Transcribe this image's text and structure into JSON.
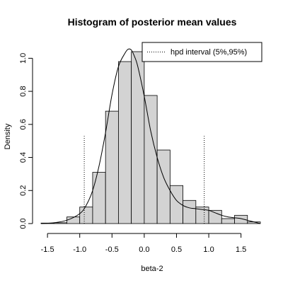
{
  "chart_data": {
    "type": "histogram",
    "title": "Histogram of posterior mean values",
    "xlabel": "beta-2",
    "ylabel": "Density",
    "xlim": [
      -1.6,
      1.8
    ],
    "ylim": [
      0,
      1.1
    ],
    "x_ticks": [
      -1.5,
      -1.0,
      -0.5,
      0.0,
      0.5,
      1.0,
      1.5
    ],
    "x_tick_labels": [
      "-1.5",
      "-1.0",
      "-0.5",
      "0.0",
      "0.5",
      "1.0",
      "1.5"
    ],
    "y_ticks": [
      0.0,
      0.2,
      0.4,
      0.6,
      0.8,
      1.0
    ],
    "y_tick_labels": [
      "0.0",
      "0.2",
      "0.4",
      "0.6",
      "0.8",
      "1.0"
    ],
    "bin_edges": [
      -1.6,
      -1.5,
      -1.4,
      -1.3,
      -1.2,
      -1.1,
      -1.0,
      -0.9,
      -0.8,
      -0.7,
      -0.6,
      -0.5,
      -0.4,
      -0.3,
      -0.2,
      -0.1,
      0.0,
      0.1,
      0.2,
      0.3,
      0.4,
      0.5,
      0.6,
      0.7,
      0.8,
      0.9,
      1.0,
      1.1,
      1.2,
      1.3,
      1.4,
      1.5,
      1.6,
      1.7,
      1.8
    ],
    "densities": [
      0.003,
      0.003,
      0.003,
      0.005,
      0.015,
      0.04,
      0.06,
      0.1,
      0.31,
      0.31,
      0.68,
      0.98,
      0.98,
      1.04,
      0.99,
      0.78,
      0.45,
      0.45,
      0.23,
      0.23,
      0.14,
      0.14,
      0.1,
      0.09,
      0.08,
      0.03,
      0.05,
      0.01,
      0.01,
      0.0,
      0.0,
      0.0,
      0.0,
      0.0
    ],
    "bins": [
      {
        "from": -1.6,
        "to": -1.4,
        "density": 0.003
      },
      {
        "from": -1.4,
        "to": -1.2,
        "density": 0.005
      },
      {
        "from": -1.2,
        "to": -1.0,
        "density": 0.04
      },
      {
        "from": -1.0,
        "to": -0.8,
        "density": 0.1
      },
      {
        "from": -0.8,
        "to": -0.6,
        "density": 0.31
      },
      {
        "from": -0.6,
        "to": -0.4,
        "density": 0.68
      },
      {
        "from": -0.4,
        "to": -0.2,
        "density": 0.98
      },
      {
        "from": -0.2,
        "to": 0.0,
        "density": 1.04
      },
      {
        "from": 0.0,
        "to": 0.2,
        "density": 0.775
      },
      {
        "from": 0.2,
        "to": 0.4,
        "density": 0.445
      },
      {
        "from": 0.4,
        "to": 0.6,
        "density": 0.23
      },
      {
        "from": 0.6,
        "to": 0.8,
        "density": 0.14
      },
      {
        "from": 0.8,
        "to": 1.0,
        "density": 0.1
      },
      {
        "from": 1.0,
        "to": 1.2,
        "density": 0.08
      },
      {
        "from": 1.2,
        "to": 1.4,
        "density": 0.03
      },
      {
        "from": 1.4,
        "to": 1.6,
        "density": 0.05
      },
      {
        "from": 1.6,
        "to": 1.8,
        "density": 0.01
      }
    ],
    "density_curve": {
      "x": [
        -1.6,
        -1.4,
        -1.2,
        -1.0,
        -0.9,
        -0.8,
        -0.7,
        -0.6,
        -0.5,
        -0.4,
        -0.3,
        -0.25,
        -0.2,
        -0.15,
        -0.1,
        0.0,
        0.1,
        0.2,
        0.3,
        0.4,
        0.5,
        0.6,
        0.7,
        0.8,
        0.9,
        1.0,
        1.1,
        1.2,
        1.3,
        1.4,
        1.5,
        1.6,
        1.7,
        1.8
      ],
      "y": [
        0.0,
        0.005,
        0.02,
        0.06,
        0.11,
        0.2,
        0.35,
        0.55,
        0.78,
        0.95,
        1.03,
        1.055,
        1.05,
        1.01,
        0.95,
        0.77,
        0.56,
        0.4,
        0.28,
        0.2,
        0.14,
        0.11,
        0.095,
        0.09,
        0.085,
        0.08,
        0.065,
        0.05,
        0.04,
        0.035,
        0.03,
        0.02,
        0.01,
        0.0
      ]
    },
    "hpd_interval": {
      "lower": -0.93,
      "upper": 0.93,
      "height": 0.53
    },
    "legend": {
      "label": "hpd interval (5%,95%)",
      "position": "top-right"
    },
    "bar_fill": "#d3d3d3",
    "bar_stroke": "#000000",
    "grid": false
  }
}
